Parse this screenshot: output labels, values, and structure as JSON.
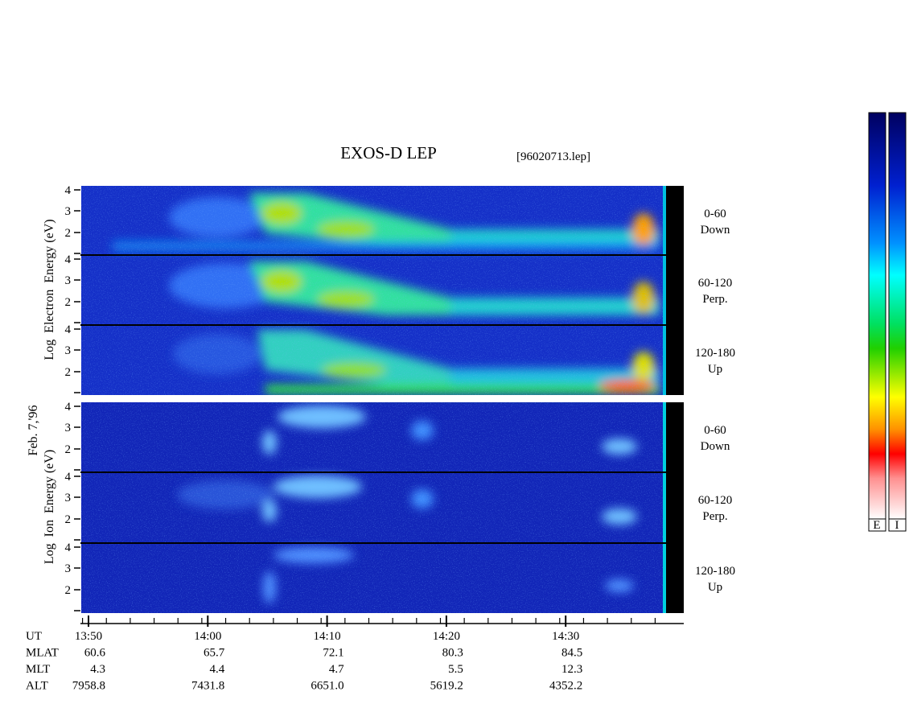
{
  "header": {
    "title": "EXOS-D LEP",
    "file": "[96020713.lep]"
  },
  "electron_axis_label": "Log  Electron  Energy (eV)",
  "ion_axis_label": "Log  Ion  Energy (eV)",
  "date": "Feb. 7,'96",
  "panels": [
    {
      "ticks": [
        "4",
        "3",
        "2"
      ],
      "channel": [
        "0-60",
        "Down"
      ]
    },
    {
      "ticks": [
        "4",
        "3",
        "2"
      ],
      "channel": [
        "60-120",
        "Perp."
      ]
    },
    {
      "ticks": [
        "4",
        "3",
        "2"
      ],
      "channel": [
        "120-180",
        "Up"
      ]
    },
    {
      "ticks": [
        "4",
        "3",
        "2"
      ],
      "channel": [
        "0-60",
        "Down"
      ]
    },
    {
      "ticks": [
        "4",
        "3",
        "2"
      ],
      "channel": [
        "60-120",
        "Perp."
      ]
    },
    {
      "ticks": [
        "4",
        "3",
        "2"
      ],
      "channel": [
        "120-180",
        "Up"
      ]
    }
  ],
  "time_table": {
    "row_labels": [
      "UT",
      "MLAT",
      "MLT",
      "ALT"
    ],
    "columns": [
      [
        "13:50",
        "60.6",
        "4.3",
        "7958.8"
      ],
      [
        "14:00",
        "65.7",
        "4.4",
        "7431.8"
      ],
      [
        "14:10",
        "72.1",
        "4.7",
        "6651.0"
      ],
      [
        "14:20",
        "80.3",
        "5.5",
        "5619.2"
      ],
      [
        "14:30",
        "84.5",
        "12.3",
        "4352.2"
      ]
    ]
  },
  "colorbar_labels": [
    "E",
    "I"
  ]
}
